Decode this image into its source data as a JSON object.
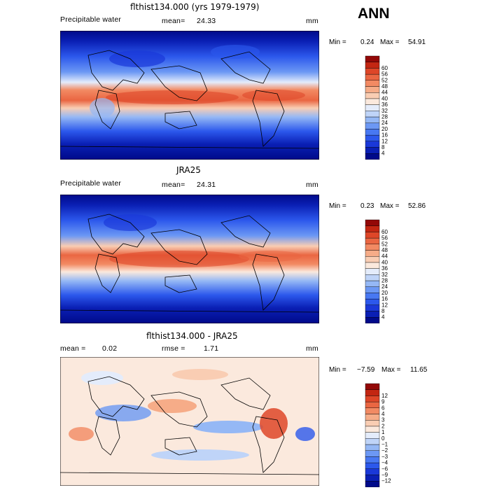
{
  "season": "ANN",
  "palettes": {
    "field": [
      "#000a8a",
      "#0a1fb4",
      "#1a38d8",
      "#2c58ec",
      "#4878f2",
      "#6c98f4",
      "#95b8f5",
      "#bfd4f8",
      "#e4ecfb",
      "#fbe9dd",
      "#f9cdb3",
      "#f6ac88",
      "#f28a63",
      "#ea6642",
      "#de4628",
      "#c32612",
      "#930807"
    ],
    "diff": [
      "#000a8a",
      "#0a1fb4",
      "#1a38d8",
      "#2c58ec",
      "#4878f2",
      "#6c98f4",
      "#95b8f5",
      "#bfd4f8",
      "#e4ecfb",
      "#fbe9dd",
      "#f9cdb3",
      "#f6ac88",
      "#f28a63",
      "#ea6642",
      "#de4628",
      "#c32612",
      "#930807"
    ]
  },
  "panels": [
    {
      "id": "model",
      "title": "flthist134.000 (yrs 1979-1979)",
      "variable": "Precipitable water",
      "mean_label": "mean=",
      "mean_value": "24.33",
      "units": "mm",
      "min_label": "Min =",
      "min_value": "0.24",
      "max_label": "Max =",
      "max_value": "54.91"
    },
    {
      "id": "obs",
      "title": "JRA25",
      "variable": "Precipitable water",
      "mean_label": "mean=",
      "mean_value": "24.31",
      "units": "mm",
      "min_label": "Min =",
      "min_value": "0.23",
      "max_label": "Max =",
      "max_value": "52.86"
    },
    {
      "id": "diff",
      "title": "flthist134.000 - JRA25",
      "mean_label": "mean =",
      "mean_value": "0.02",
      "rmse_label": "rmse =",
      "rmse_value": "1.71",
      "units": "mm",
      "min_label": "Min =",
      "min_value": "−7.59",
      "max_label": "Max =",
      "max_value": "11.65"
    }
  ],
  "chart_data": [
    {
      "type": "heatmap",
      "title": "flthist134.000 (yrs 1979-1979)",
      "subtitle": "Precipitable water",
      "units": "mm",
      "mean": 24.33,
      "min": 0.24,
      "max": 54.91,
      "colorbar_levels": [
        4,
        8,
        12,
        16,
        20,
        24,
        28,
        32,
        36,
        40,
        44,
        48,
        52,
        56,
        60
      ],
      "pattern": "zonal maximum in tropics (~44-52 mm) decreasing poleward to <4 mm"
    },
    {
      "type": "heatmap",
      "title": "JRA25",
      "subtitle": "Precipitable water",
      "units": "mm",
      "mean": 24.31,
      "min": 0.23,
      "max": 52.86,
      "colorbar_levels": [
        4,
        8,
        12,
        16,
        20,
        24,
        28,
        32,
        36,
        40,
        44,
        48,
        52,
        56,
        60
      ],
      "pattern": "zonal maximum in tropics (~44-52 mm) decreasing poleward to <4 mm"
    },
    {
      "type": "heatmap",
      "title": "flthist134.000 - JRA25",
      "units": "mm",
      "mean": 0.02,
      "rmse": 1.71,
      "min": -7.59,
      "max": 11.65,
      "colorbar_levels": [
        -12,
        -9,
        -6,
        -4,
        -3,
        -2,
        -1,
        0,
        1,
        2,
        3,
        4,
        6,
        9,
        12
      ],
      "colorbar_labels": [
        "−12",
        "−9",
        "−6",
        "−4",
        "−3",
        "−2",
        "−1",
        "0",
        "1",
        "2",
        "3",
        "4",
        "6",
        "9",
        "12"
      ]
    }
  ]
}
